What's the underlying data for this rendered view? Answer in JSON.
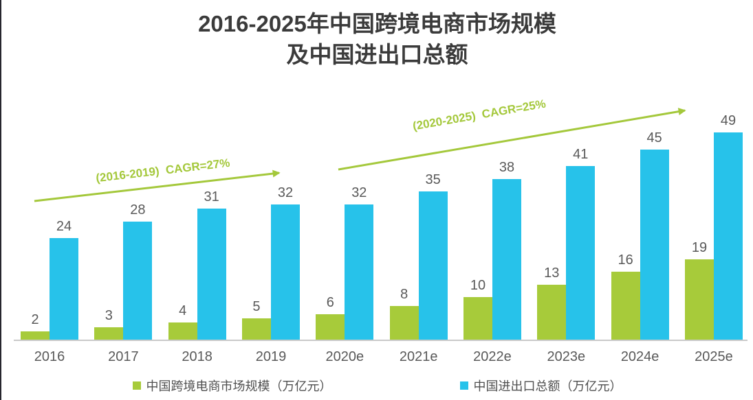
{
  "title": {
    "line1": "2016-2025年中国跨境电商市场规模",
    "line2": "及中国进出口总额"
  },
  "annotations": {
    "cagr_2016_2019": "(2016-2019)  CAGR=27%",
    "cagr_2020_2025": "(2020-2025)  CAGR=25%"
  },
  "legend": [
    {
      "label": "中国跨境电商市场规模（万亿元）",
      "color": "#a7cb3a"
    },
    {
      "label": "中国进出口总额（万亿元）",
      "color": "#27c2ea"
    }
  ],
  "colors": {
    "series_green": "#a7cb3a",
    "series_blue": "#27c2ea",
    "annotation_green": "#a4c83b",
    "axis_line": "#c9c9c9",
    "text_gray": "#595959",
    "title_dark": "#3b3b3b"
  },
  "chart_data": {
    "type": "bar",
    "title": "2016-2025年中国跨境电商市场规模及中国进出口总额",
    "categories": [
      "2016",
      "2017",
      "2018",
      "2019",
      "2020e",
      "2021e",
      "2022e",
      "2023e",
      "2024e",
      "2025e"
    ],
    "series": [
      {
        "name": "中国跨境电商市场规模（万亿元）",
        "color": "#a7cb3a",
        "values": [
          2,
          3,
          4,
          5,
          6,
          8,
          10,
          13,
          16,
          19
        ]
      },
      {
        "name": "中国进出口总额（万亿元）",
        "color": "#27c2ea",
        "values": [
          24,
          28,
          31,
          32,
          32,
          35,
          38,
          41,
          45,
          49
        ]
      }
    ],
    "xlabel": "",
    "ylabel": "",
    "ylim": [
      0,
      56
    ],
    "grid": false,
    "value_labels": true,
    "legend_position": "bottom",
    "annotations": [
      {
        "text": "(2016-2019)  CAGR=27%",
        "type": "arrow",
        "span": [
          "2016",
          "2019"
        ],
        "cagr": "27%"
      },
      {
        "text": "(2020-2025)  CAGR=25%",
        "type": "arrow",
        "span": [
          "2020e",
          "2025e"
        ],
        "cagr": "25%"
      }
    ]
  }
}
